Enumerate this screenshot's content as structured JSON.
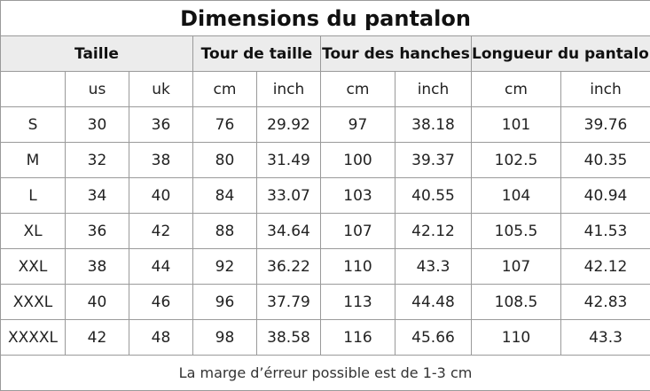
{
  "table": {
    "title": "Dimensions du pantalon",
    "groups": [
      "Taille",
      "Tour de taille",
      "Tour des hanches",
      "Longueur du pantalon"
    ],
    "units": [
      "us",
      "uk",
      "cm",
      "inch",
      "cm",
      "inch",
      "cm",
      "inch"
    ],
    "rows": [
      [
        "S",
        "30",
        "36",
        "76",
        "29.92",
        "97",
        "38.18",
        "101",
        "39.76"
      ],
      [
        "M",
        "32",
        "38",
        "80",
        "31.49",
        "100",
        "39.37",
        "102.5",
        "40.35"
      ],
      [
        "L",
        "34",
        "40",
        "84",
        "33.07",
        "103",
        "40.55",
        "104",
        "40.94"
      ],
      [
        "XL",
        "36",
        "42",
        "88",
        "34.64",
        "107",
        "42.12",
        "105.5",
        "41.53"
      ],
      [
        "XXL",
        "38",
        "44",
        "92",
        "36.22",
        "110",
        "43.3",
        "107",
        "42.12"
      ],
      [
        "XXXL",
        "40",
        "46",
        "96",
        "37.79",
        "113",
        "44.48",
        "108.5",
        "42.83"
      ],
      [
        "XXXXL",
        "42",
        "48",
        "98",
        "38.58",
        "116",
        "45.66",
        "110",
        "43.3"
      ]
    ],
    "footer": "La marge d’érreur possible est de 1-3 cm"
  }
}
